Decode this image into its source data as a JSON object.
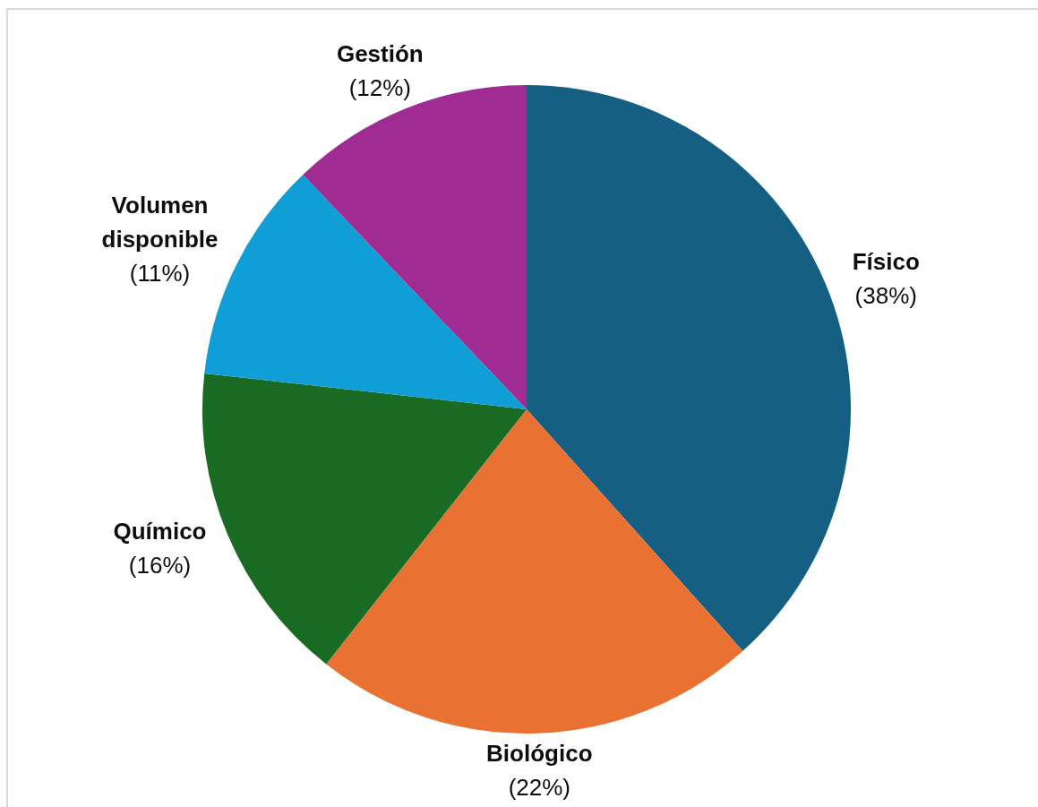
{
  "chart_data": {
    "type": "pie",
    "categories": [
      "Físico",
      "Biológico",
      "Químico",
      "Volumen disponible",
      "Gestión"
    ],
    "values": [
      38,
      22,
      16,
      11,
      12
    ],
    "colors": [
      "#156082",
      "#e97132",
      "#196b24",
      "#0f9ed5",
      "#a02b93"
    ],
    "value_labels": [
      "(38%)",
      "(22%)",
      "(16%)",
      "(11%)",
      "(12%)"
    ]
  }
}
